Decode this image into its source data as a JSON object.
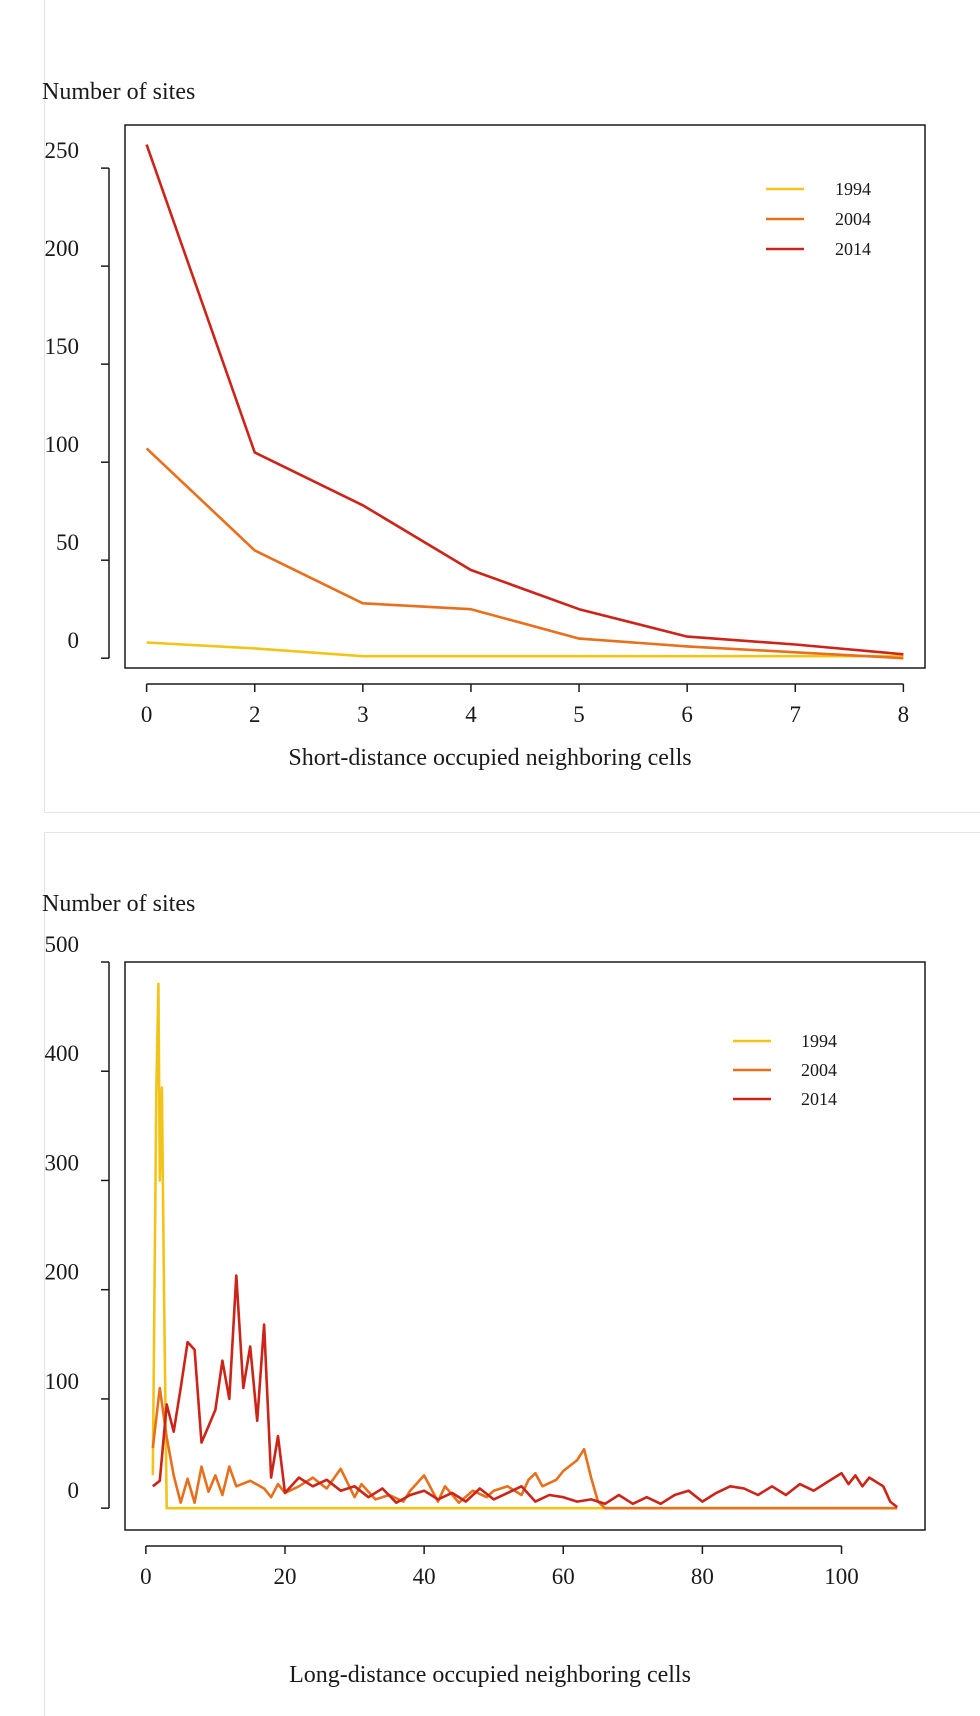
{
  "chart_data": [
    {
      "type": "line",
      "ylabel": "Number of sites",
      "xlabel": "Short-distance  occupied neighboring  cells",
      "x_ticks": [
        "0",
        "2",
        "3",
        "4",
        "5",
        "6",
        "7",
        "8"
      ],
      "y_ticks": [
        "0",
        "50",
        "100",
        "150",
        "200",
        "250"
      ],
      "ylim": [
        -5,
        272
      ],
      "xlim": [
        -0.2,
        7.2
      ],
      "x_positions_are_tick_indices": true,
      "grid": false,
      "legend_position": "top-right",
      "series": [
        {
          "name": "1994",
          "color": "#f2c41a",
          "points": [
            [
              0,
              8
            ],
            [
              1,
              5
            ],
            [
              2,
              1
            ],
            [
              3,
              1
            ],
            [
              4,
              1
            ],
            [
              5,
              1
            ],
            [
              6,
              1
            ],
            [
              7,
              1
            ]
          ]
        },
        {
          "name": "2004",
          "color": "#e8701c",
          "points": [
            [
              0,
              107
            ],
            [
              1,
              55
            ],
            [
              2,
              28
            ],
            [
              3,
              25
            ],
            [
              4,
              10
            ],
            [
              5,
              6
            ],
            [
              6,
              3
            ],
            [
              7,
              0
            ]
          ]
        },
        {
          "name": "2014",
          "color": "#cc2418",
          "points": [
            [
              0,
              262
            ],
            [
              1,
              105
            ],
            [
              2,
              78
            ],
            [
              3,
              45
            ],
            [
              4,
              25
            ],
            [
              5,
              11
            ],
            [
              6,
              7
            ],
            [
              7,
              2
            ]
          ]
        }
      ]
    },
    {
      "type": "line",
      "ylabel": "Number of sites",
      "xlabel": "Long-distance  occupied neighboring  cells",
      "x_ticks": [
        "0",
        "20",
        "40",
        "60",
        "80",
        "100"
      ],
      "x_tick_values": [
        0,
        20,
        40,
        60,
        80,
        100
      ],
      "y_ticks": [
        "0",
        "100",
        "200",
        "300",
        "400",
        "500"
      ],
      "y_tick_values": [
        0,
        100,
        200,
        300,
        400,
        500
      ],
      "xlim": [
        -3,
        112
      ],
      "ylim": [
        -20,
        500
      ],
      "grid": false,
      "legend_position": "top-right",
      "series": [
        {
          "name": "1994",
          "color": "#f2c41a",
          "points": [
            [
              1,
              30
            ],
            [
              1.5,
              380
            ],
            [
              1.8,
              480
            ],
            [
              2,
              300
            ],
            [
              2.3,
              385
            ],
            [
              2.6,
              200
            ],
            [
              3,
              0
            ],
            [
              108,
              0
            ]
          ]
        },
        {
          "name": "2004",
          "color": "#e8701c",
          "points": [
            [
              1,
              55
            ],
            [
              2,
              110
            ],
            [
              3,
              65
            ],
            [
              4,
              30
            ],
            [
              5,
              5
            ],
            [
              6,
              27
            ],
            [
              7,
              5
            ],
            [
              8,
              38
            ],
            [
              9,
              15
            ],
            [
              10,
              30
            ],
            [
              11,
              12
            ],
            [
              12,
              38
            ],
            [
              13,
              20
            ],
            [
              15,
              25
            ],
            [
              17,
              18
            ],
            [
              18,
              10
            ],
            [
              19,
              22
            ],
            [
              20,
              14
            ],
            [
              22,
              20
            ],
            [
              24,
              28
            ],
            [
              26,
              18
            ],
            [
              28,
              36
            ],
            [
              30,
              10
            ],
            [
              31,
              22
            ],
            [
              33,
              8
            ],
            [
              35,
              12
            ],
            [
              37,
              6
            ],
            [
              38,
              16
            ],
            [
              40,
              30
            ],
            [
              42,
              6
            ],
            [
              43,
              20
            ],
            [
              45,
              5
            ],
            [
              47,
              16
            ],
            [
              49,
              10
            ],
            [
              50,
              16
            ],
            [
              52,
              20
            ],
            [
              54,
              12
            ],
            [
              55,
              26
            ],
            [
              56,
              32
            ],
            [
              57,
              20
            ],
            [
              59,
              26
            ],
            [
              60,
              34
            ],
            [
              62,
              44
            ],
            [
              63,
              54
            ],
            [
              64,
              28
            ],
            [
              65,
              6
            ],
            [
              66,
              0
            ],
            [
              108,
              0
            ]
          ]
        },
        {
          "name": "2014",
          "color": "#cc2418",
          "points": [
            [
              1,
              20
            ],
            [
              2,
              25
            ],
            [
              3,
              95
            ],
            [
              4,
              70
            ],
            [
              5,
              110
            ],
            [
              6,
              152
            ],
            [
              7,
              145
            ],
            [
              8,
              60
            ],
            [
              9,
              75
            ],
            [
              10,
              90
            ],
            [
              11,
              135
            ],
            [
              12,
              100
            ],
            [
              13,
              213
            ],
            [
              14,
              110
            ],
            [
              15,
              148
            ],
            [
              16,
              80
            ],
            [
              17,
              168
            ],
            [
              18,
              28
            ],
            [
              19,
              66
            ],
            [
              20,
              14
            ],
            [
              22,
              28
            ],
            [
              24,
              20
            ],
            [
              26,
              26
            ],
            [
              28,
              16
            ],
            [
              30,
              20
            ],
            [
              32,
              10
            ],
            [
              34,
              18
            ],
            [
              36,
              5
            ],
            [
              38,
              12
            ],
            [
              40,
              16
            ],
            [
              42,
              8
            ],
            [
              44,
              14
            ],
            [
              46,
              6
            ],
            [
              48,
              18
            ],
            [
              50,
              8
            ],
            [
              52,
              14
            ],
            [
              54,
              20
            ],
            [
              56,
              6
            ],
            [
              58,
              12
            ],
            [
              60,
              10
            ],
            [
              62,
              6
            ],
            [
              64,
              8
            ],
            [
              66,
              4
            ],
            [
              68,
              12
            ],
            [
              70,
              4
            ],
            [
              72,
              10
            ],
            [
              74,
              4
            ],
            [
              76,
              12
            ],
            [
              78,
              16
            ],
            [
              80,
              6
            ],
            [
              82,
              14
            ],
            [
              84,
              20
            ],
            [
              86,
              18
            ],
            [
              88,
              12
            ],
            [
              90,
              20
            ],
            [
              92,
              12
            ],
            [
              94,
              22
            ],
            [
              96,
              16
            ],
            [
              98,
              24
            ],
            [
              100,
              32
            ],
            [
              101,
              22
            ],
            [
              102,
              30
            ],
            [
              103,
              20
            ],
            [
              104,
              28
            ],
            [
              106,
              20
            ],
            [
              107,
              6
            ],
            [
              108,
              1
            ]
          ]
        }
      ]
    }
  ]
}
